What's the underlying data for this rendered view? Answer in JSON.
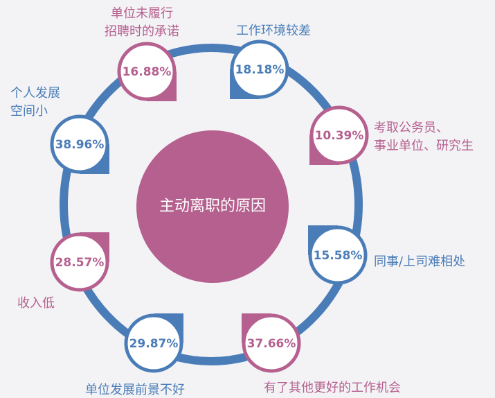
{
  "title": "主动离职的原因",
  "nodes": [
    {
      "label": [
        "单位未履行",
        "招聘时的承诺"
      ],
      "value": "16.88%"
    },
    {
      "label": [
        "工作环境较差"
      ],
      "value": "18.18%"
    },
    {
      "label": [
        "考取公务员、",
        "事业单位、研究生"
      ],
      "value": "10.39%"
    },
    {
      "label": [
        "同事/上司难相处"
      ],
      "value": "15.58%"
    },
    {
      "label": [
        "有了其他更好的工作机会"
      ],
      "value": "37.66%"
    },
    {
      "label": [
        "单位发展前景不好"
      ],
      "value": "29.87%"
    },
    {
      "label": [
        "收入低"
      ],
      "value": "28.57%"
    },
    {
      "label": [
        "个人发展",
        "空间小"
      ],
      "value": "38.96%"
    }
  ]
}
